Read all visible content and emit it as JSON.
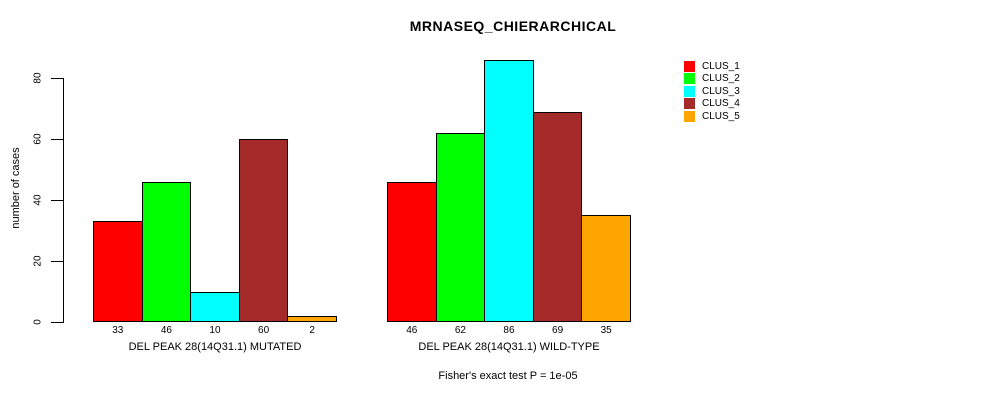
{
  "chart_data": {
    "type": "bar",
    "title": "MRNASEQ_CHIERARCHICAL",
    "ylabel": "number of cases",
    "xlabel": "",
    "subtitle": "Fisher's exact test P = 1e-05",
    "ylim": [
      0,
      80
    ],
    "yticks": [
      0,
      20,
      40,
      60,
      80
    ],
    "grid": "off",
    "legend_position": "right",
    "series": [
      {
        "name": "CLUS_1",
        "color": "#FF0000"
      },
      {
        "name": "CLUS_2",
        "color": "#00FF00"
      },
      {
        "name": "CLUS_3",
        "color": "#00FFFF"
      },
      {
        "name": "CLUS_4",
        "color": "#A52A2A"
      },
      {
        "name": "CLUS_5",
        "color": "#FFA500"
      }
    ],
    "groups": [
      {
        "label": "DEL PEAK 28(14Q31.1) MUTATED",
        "values": [
          33,
          46,
          10,
          60,
          2
        ]
      },
      {
        "label": "DEL PEAK 28(14Q31.1) WILD-TYPE",
        "values": [
          46,
          62,
          86,
          69,
          35
        ]
      }
    ]
  }
}
